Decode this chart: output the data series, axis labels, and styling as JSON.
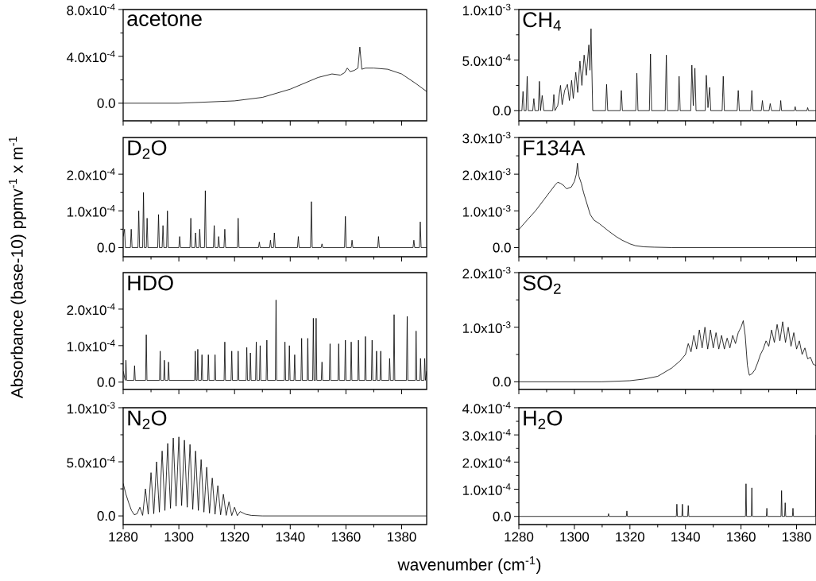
{
  "chart_data": [
    {
      "type": "line",
      "title": "acetone",
      "ylabel": "Absorbance (base-10) ppmv$^{-1}$ x m$^{-1}$",
      "color": "#000000",
      "tick_labels": "y",
      "xlim": [
        1280,
        1389
      ],
      "xticks": [
        1280,
        1300,
        1320,
        1340,
        1360,
        1380
      ],
      "ylim": [
        -0.00015,
        0.0008
      ],
      "yticks": [
        {
          "value": 0,
          "label": "0.0"
        },
        {
          "value": 0.0004,
          "label": "4.0x10$^{-4}$"
        },
        {
          "value": 0.0008,
          "label": "8.0x10$^{-4}$"
        }
      ],
      "x": [
        1280,
        1300,
        1320,
        1330,
        1340,
        1345,
        1350,
        1355,
        1358,
        1359.5,
        1360.5,
        1361.5,
        1363,
        1364.3,
        1365,
        1365.7,
        1367,
        1370,
        1375,
        1380,
        1385,
        1389
      ],
      "values": [
        0,
        0,
        2e-05,
        5e-05,
        0.00012,
        0.00017,
        0.00022,
        0.00025,
        0.00024,
        0.00026,
        0.0003,
        0.00027,
        0.00028,
        0.0003,
        0.00048,
        0.00029,
        0.0003,
        0.0003,
        0.00029,
        0.00025,
        0.00017,
        0.0001
      ]
    },
    {
      "type": "line",
      "title": "CH$_{4}$",
      "color": "#000000",
      "tick_labels": "y",
      "xlim": [
        1280,
        1387
      ],
      "xticks": [
        1280,
        1300,
        1320,
        1340,
        1360,
        1380
      ],
      "ylim": [
        -0.0001,
        0.001
      ],
      "yticks": [
        {
          "value": 0,
          "label": "0.0"
        },
        {
          "value": 0.0005,
          "label": "5.0x10$^{-4}$"
        },
        {
          "value": 0.001,
          "label": "1.0x10$^{-3}$"
        }
      ],
      "x": [
        1280,
        1281.1,
        1281.5,
        1281.9,
        1282.6,
        1283,
        1283.4,
        1285,
        1285.4,
        1285.8,
        1287,
        1287.4,
        1287.8,
        1288.4,
        1289,
        1292.2,
        1292.6,
        1293,
        1294,
        1295,
        1295.6,
        1296.5,
        1297.5,
        1298.2,
        1299,
        1299.6,
        1300.5,
        1301.2,
        1302,
        1302.7,
        1303.5,
        1304.3,
        1305.2,
        1305.6,
        1306,
        1306.6,
        1311.2,
        1311.6,
        1312,
        1316.5,
        1316.9,
        1317.3,
        1322.1,
        1322.5,
        1322.9,
        1327,
        1327.4,
        1327.8,
        1332.7,
        1333.1,
        1333.5,
        1337.3,
        1337.7,
        1338.1,
        1341.9,
        1342.3,
        1342.8,
        1343.4,
        1343.8,
        1347.1,
        1347.5,
        1348.1,
        1348.7,
        1349.1,
        1353.2,
        1353.6,
        1354,
        1358.6,
        1359,
        1359.4,
        1363.5,
        1363.9,
        1364.3,
        1367.3,
        1367.7,
        1368.1,
        1370.1,
        1370.5,
        1371,
        1374,
        1374.3,
        1374.6,
        1379.2,
        1379.5,
        1379.8,
        1383.7,
        1384,
        1384.3,
        1387
      ],
      "values": [
        0,
        0,
        0.00019,
        0,
        0,
        0.00034,
        0,
        0,
        0.00012,
        0,
        0,
        0.00029,
        0,
        0.00015,
        0,
        0,
        0.00016,
        0,
        5e-05,
        0.00025,
        6e-05,
        0.0002,
        0.00026,
        0.0001,
        0.0003,
        0.00012,
        0.00038,
        0.00018,
        0.00049,
        0.00025,
        0.00055,
        0.00035,
        0.00065,
        0.0004,
        0.00081,
        0,
        0,
        0.00026,
        0,
        0,
        0.0002,
        0,
        0,
        0.00037,
        0,
        0,
        0.00056,
        0,
        0,
        0.00055,
        0,
        0,
        0.00034,
        0,
        0,
        0.00045,
        5e-05,
        0.00042,
        0,
        0,
        0.00035,
        3e-05,
        0.00023,
        0,
        0,
        0.00034,
        0,
        0,
        0.0002,
        0,
        0,
        0.0002,
        0,
        0,
        0.0001,
        0,
        0,
        7e-05,
        0,
        0,
        0.0001,
        0,
        0,
        4e-05,
        0,
        0,
        3e-05,
        0,
        0
      ]
    },
    {
      "type": "line",
      "title": "D$_{2}$O",
      "color": "#000000",
      "tick_labels": "y",
      "xlim": [
        1280,
        1389
      ],
      "xticks": [
        1280,
        1300,
        1320,
        1340,
        1360,
        1380
      ],
      "ylim": [
        -2.5e-05,
        0.0003
      ],
      "yticks": [
        {
          "value": 0,
          "label": "0.0"
        },
        {
          "value": 0.0001,
          "label": "1.0x10$^{-4}$"
        },
        {
          "value": 0.0002,
          "label": "2.0x10$^{-4}$"
        }
      ],
      "x": [
        1280,
        1280.5,
        1280.8,
        1282.6,
        1282.9,
        1283.2,
        1285.3,
        1285.6,
        1285.9,
        1287,
        1287.3,
        1287.6,
        1288.3,
        1288.6,
        1288.9,
        1292.4,
        1292.7,
        1293,
        1294,
        1294.3,
        1294.6,
        1295.6,
        1295.9,
        1296.2,
        1300,
        1300.3,
        1300.6,
        1304,
        1304.3,
        1304.6,
        1305.7,
        1306,
        1306.3,
        1307.2,
        1307.5,
        1307.8,
        1309.2,
        1309.5,
        1309.8,
        1312.4,
        1312.7,
        1313,
        1314,
        1314.3,
        1314.6,
        1316.2,
        1316.5,
        1316.8,
        1321,
        1321.3,
        1321.6,
        1328.6,
        1328.9,
        1329.2,
        1332.6,
        1332.9,
        1333.2,
        1334,
        1334.3,
        1334.6,
        1342.6,
        1342.9,
        1343.2,
        1347.3,
        1347.6,
        1347.9,
        1351.1,
        1351.4,
        1351.7,
        1359.5,
        1359.8,
        1360.1,
        1361.9,
        1362.2,
        1362.5,
        1371.4,
        1371.7,
        1372,
        1384.1,
        1384.4,
        1384.7,
        1386.4,
        1386.7,
        1387,
        1389
      ],
      "values": [
        3e-05,
        5e-05,
        0,
        0,
        5e-05,
        0,
        0,
        0.0001,
        0,
        0,
        0.00015,
        0,
        0,
        8e-05,
        0,
        0,
        9e-05,
        0,
        0,
        6e-05,
        0,
        0,
        0.0001,
        0,
        0,
        3e-05,
        0,
        0,
        8e-05,
        0,
        0,
        4e-05,
        0,
        0,
        5e-05,
        0,
        0,
        0.000155,
        0,
        0,
        6e-05,
        0,
        0,
        3e-05,
        0,
        0,
        5e-05,
        0,
        0,
        8e-05,
        0,
        0,
        1.5e-05,
        0,
        0,
        2e-05,
        0,
        0,
        4e-05,
        0,
        0,
        3e-05,
        0,
        0,
        0.000125,
        0,
        0,
        1e-05,
        0,
        0,
        8.5e-05,
        0,
        0,
        2e-05,
        0,
        0,
        3e-05,
        0,
        0,
        2e-05,
        0,
        0,
        7e-05,
        0,
        0
      ]
    },
    {
      "type": "line",
      "title": "F134A",
      "color": "#000000",
      "tick_labels": "y",
      "xlim": [
        1280,
        1387
      ],
      "xticks": [
        1280,
        1300,
        1320,
        1340,
        1360,
        1380
      ],
      "ylim": [
        -0.00025,
        0.003
      ],
      "yticks": [
        {
          "value": 0,
          "label": "0.0"
        },
        {
          "value": 0.001,
          "label": "1.0x10$^{-3}$"
        },
        {
          "value": 0.002,
          "label": "2.0x10$^{-3}$"
        },
        {
          "value": 0.003,
          "label": "3.0x10$^{-3}$"
        }
      ],
      "x": [
        1280,
        1283,
        1286,
        1289,
        1291,
        1293,
        1294,
        1295,
        1296,
        1297.2,
        1298.9,
        1300,
        1300.7,
        1301.1,
        1301.6,
        1302.5,
        1303.3,
        1304.5,
        1305.7,
        1307,
        1309,
        1312.3,
        1315,
        1317.2,
        1320,
        1322,
        1325,
        1328.7,
        1335,
        1345,
        1360,
        1370,
        1380,
        1387
      ],
      "values": [
        0.00049,
        0.00075,
        0.001,
        0.0013,
        0.0015,
        0.0017,
        0.00178,
        0.00175,
        0.0017,
        0.0016,
        0.00165,
        0.0018,
        0.002,
        0.0023,
        0.00195,
        0.00175,
        0.0015,
        0.0012,
        0.0009,
        0.00075,
        0.00065,
        0.00045,
        0.0003,
        0.0002,
        0.0001,
        5e-05,
        2e-05,
        1e-05,
        0,
        0,
        0,
        0,
        0,
        0
      ]
    },
    {
      "type": "line",
      "title": "HDO",
      "color": "#000000",
      "tick_labels": "y",
      "xlim": [
        1280,
        1389
      ],
      "xticks": [
        1280,
        1300,
        1320,
        1340,
        1360,
        1380
      ],
      "ylim": [
        -2e-05,
        0.0003
      ],
      "yticks": [
        {
          "value": 0,
          "label": "0.0"
        },
        {
          "value": 0.0001,
          "label": "1.0x10$^{-4}$"
        },
        {
          "value": 0.0002,
          "label": "2.0x10$^{-4}$"
        }
      ],
      "x": [
        1280,
        1280.75,
        1281,
        1281.25,
        1283.85,
        1284.1,
        1284.35,
        1288.05,
        1288.3,
        1288.55,
        1293.05,
        1293.3,
        1293.55,
        1294.55,
        1294.8,
        1295.05,
        1296.05,
        1296.3,
        1296.55,
        1305.65,
        1305.9,
        1306.15,
        1306.55,
        1306.8,
        1307.05,
        1308.05,
        1308.3,
        1308.55,
        1310.35,
        1310.6,
        1310.85,
        1312.75,
        1313,
        1313.25,
        1316.25,
        1316.5,
        1316.75,
        1318.75,
        1319,
        1319.25,
        1321.05,
        1321.3,
        1321.55,
        1324.15,
        1324.4,
        1324.65,
        1325.45,
        1325.7,
        1325.95,
        1327.55,
        1327.8,
        1328.05,
        1328.95,
        1329.2,
        1329.45,
        1331.35,
        1331.6,
        1331.85,
        1334.65,
        1334.9,
        1335.15,
        1337.85,
        1338.1,
        1338.35,
        1339.45,
        1339.7,
        1339.95,
        1341.35,
        1341.6,
        1341.85,
        1343.85,
        1344.1,
        1344.35,
        1346.05,
        1346.3,
        1346.55,
        1348.05,
        1348.3,
        1348.55,
        1349.05,
        1349.3,
        1349.55,
        1351.15,
        1351.4,
        1351.65,
        1354.05,
        1354.3,
        1354.55,
        1357.15,
        1357.4,
        1357.65,
        1359.55,
        1359.8,
        1360.05,
        1361.65,
        1361.9,
        1362.15,
        1364.25,
        1364.5,
        1364.75,
        1366.75,
        1367,
        1367.25,
        1369.15,
        1369.4,
        1369.65,
        1370.75,
        1371,
        1371.25,
        1372.25,
        1372.5,
        1372.75,
        1375.45,
        1375.7,
        1375.95,
        1377.05,
        1377.3,
        1377.55,
        1381.75,
        1382,
        1382.25,
        1384.95,
        1385.2,
        1385.45,
        1386.55,
        1386.8,
        1387.05,
        1388.05,
        1388.3,
        1388.55,
        1389
      ],
      "values": [
        3e-05,
        5e-06,
        6e-05,
        5e-06,
        5e-06,
        4.5e-05,
        5e-06,
        5e-06,
        0.00013,
        5e-06,
        5e-06,
        8.5e-05,
        5e-06,
        5e-06,
        6e-05,
        5e-06,
        5e-06,
        5.5e-05,
        5e-06,
        5e-06,
        8.5e-05,
        5e-06,
        5e-06,
        9e-05,
        5e-06,
        5e-06,
        7.5e-05,
        5e-06,
        5e-06,
        7.5e-05,
        5e-06,
        5e-06,
        7.5e-05,
        5e-06,
        5e-06,
        0.00011,
        5e-06,
        5e-06,
        8.5e-05,
        5e-06,
        5e-06,
        8.5e-05,
        5e-06,
        5e-06,
        9.5e-05,
        5e-06,
        5e-06,
        8e-05,
        5e-06,
        5e-06,
        0.00011,
        5e-06,
        5e-06,
        0.0001,
        5e-06,
        5e-06,
        0.000115,
        5e-06,
        5e-06,
        0.000225,
        5e-06,
        5e-06,
        0.00011,
        5e-06,
        5e-06,
        0.0001,
        5e-06,
        5e-06,
        7.5e-05,
        5e-06,
        5e-06,
        0.00012,
        5e-06,
        5e-06,
        0.00012,
        5e-06,
        5e-06,
        0.000175,
        5e-06,
        5e-06,
        0.000175,
        5e-06,
        5e-06,
        5.5e-05,
        5e-06,
        5e-06,
        0.000105,
        5e-06,
        5e-06,
        0.000105,
        5e-06,
        5e-06,
        0.000115,
        5e-06,
        5e-06,
        0.00011,
        5e-06,
        5e-06,
        0.000115,
        5e-06,
        5e-06,
        0.000125,
        5e-06,
        5e-06,
        0.000115,
        5e-06,
        5e-06,
        8.5e-05,
        5e-06,
        5e-06,
        8.5e-05,
        5e-06,
        5e-06,
        6.5e-05,
        5e-06,
        5e-06,
        0.000185,
        5e-06,
        5e-06,
        0.00018,
        5e-06,
        5e-06,
        0.00014,
        5e-06,
        5e-06,
        6.5e-05,
        5e-06,
        5e-06,
        6.5e-05,
        5e-06,
        3e-05
      ]
    },
    {
      "type": "line",
      "title": "SO$_{2}$",
      "color": "#000000",
      "tick_labels": "y",
      "xlim": [
        1280,
        1387
      ],
      "xticks": [
        1280,
        1300,
        1320,
        1340,
        1360,
        1380
      ],
      "ylim": [
        -0.00014,
        0.002
      ],
      "yticks": [
        {
          "value": 0,
          "label": "0.0"
        },
        {
          "value": 0.001,
          "label": "1.0x10$^{-3}$"
        },
        {
          "value": 0.002,
          "label": "2.0x10$^{-3}$"
        }
      ],
      "x": [
        1280,
        1300,
        1310,
        1320,
        1325,
        1330,
        1335,
        1338,
        1340,
        1341,
        1342,
        1343,
        1344,
        1345,
        1346,
        1347,
        1348,
        1349,
        1350,
        1351,
        1352,
        1353,
        1354,
        1355,
        1356,
        1357,
        1358,
        1359,
        1360,
        1360.8,
        1361.5,
        1362.3,
        1363,
        1364,
        1365,
        1366,
        1367,
        1368,
        1369,
        1370,
        1371,
        1372,
        1373,
        1374,
        1375,
        1376,
        1377,
        1378,
        1379,
        1380,
        1381,
        1382,
        1383,
        1384,
        1385,
        1386,
        1387
      ],
      "values": [
        0,
        0,
        0,
        2e-05,
        5e-05,
        0.0001,
        0.00025,
        0.00038,
        0.0005,
        0.0007,
        0.00055,
        0.00085,
        0.0006,
        0.00095,
        0.00062,
        0.001,
        0.0006,
        0.00095,
        0.00062,
        0.0009,
        0.0006,
        0.00085,
        0.0006,
        0.0008,
        0.00062,
        0.00085,
        0.0007,
        0.0009,
        0.001,
        0.00112,
        0.00085,
        0.0003,
        0.00012,
        0.00015,
        0.00022,
        0.00035,
        0.0005,
        0.0006,
        0.00075,
        0.00065,
        0.00095,
        0.00072,
        0.00105,
        0.00075,
        0.0011,
        0.00072,
        0.001,
        0.00065,
        0.0009,
        0.0006,
        0.00075,
        0.0005,
        0.00062,
        0.00042,
        0.00045,
        0.00032,
        0.0003
      ]
    },
    {
      "type": "line",
      "title": "N$_{2}$O",
      "color": "#000000",
      "xlim": [
        1280,
        1389
      ],
      "xticks": [
        1280,
        1300,
        1320,
        1340,
        1360,
        1380
      ],
      "ylim": [
        -8e-05,
        0.001
      ],
      "xlabel": "wavenumber (cm$^{-1}$)",
      "yticks": [
        {
          "value": 0,
          "label": "0.0"
        },
        {
          "value": 0.0005,
          "label": "5.0x10$^{-4}$"
        },
        {
          "value": 0.001,
          "label": "1.0x10$^{-3}$"
        }
      ],
      "x": [
        1280,
        1281,
        1282,
        1283,
        1284,
        1285,
        1286,
        1287,
        1288,
        1289,
        1290,
        1291,
        1292,
        1293,
        1294,
        1295,
        1296,
        1297,
        1298,
        1299,
        1300,
        1301,
        1302,
        1303,
        1304,
        1305,
        1306,
        1307,
        1308,
        1309,
        1310,
        1311,
        1312,
        1313,
        1314,
        1315,
        1316,
        1317,
        1318,
        1319,
        1320,
        1321,
        1322,
        1324,
        1326,
        1330,
        1389
      ],
      "values": [
        0.0003,
        0.0002,
        0.00012,
        5e-05,
        1e-05,
        2e-05,
        8e-05,
        5e-06,
        0.00025,
        1.5e-05,
        0.0004,
        2e-05,
        0.0005,
        3.5e-05,
        0.0006,
        5e-05,
        0.00067,
        7e-05,
        0.00072,
        9e-05,
        0.00073,
        9.5e-05,
        0.0007,
        8e-05,
        0.00066,
        6e-05,
        0.0006,
        5e-05,
        0.00052,
        3.5e-05,
        0.00045,
        2.5e-05,
        0.00035,
        1.5e-05,
        0.00028,
        1e-05,
        0.0002,
        5e-06,
        0.00013,
        3e-06,
        8e-05,
        2e-06,
        4e-05,
        1.5e-05,
        5e-06,
        0,
        0
      ]
    },
    {
      "type": "line",
      "title": "H$_{2}$O",
      "color": "#000000",
      "xlim": [
        1280,
        1387
      ],
      "xticks": [
        1280,
        1300,
        1320,
        1340,
        1360,
        1380
      ],
      "ylim": [
        -3e-05,
        0.0004
      ],
      "yticks": [
        {
          "value": 0,
          "label": "0.0"
        },
        {
          "value": 0.0001,
          "label": "1.0x10$^{-4}$"
        },
        {
          "value": 0.0002,
          "label": "2.0x10$^{-4}$"
        },
        {
          "value": 0.0003,
          "label": "3.0x10$^{-4}$"
        },
        {
          "value": 0.0004,
          "label": "4.0x10$^{-4}$"
        }
      ],
      "x": [
        1280,
        1312.1,
        1312.3,
        1312.5,
        1318.7,
        1318.9,
        1319.1,
        1336.7,
        1336.9,
        1337.1,
        1338.7,
        1338.9,
        1339.1,
        1340.8,
        1341,
        1341.2,
        1361.6,
        1361.8,
        1362,
        1363.7,
        1363.9,
        1364.1,
        1369.1,
        1369.3,
        1369.5,
        1374.4,
        1374.6,
        1374.8,
        1375.7,
        1375.9,
        1376.1,
        1378.5,
        1378.7,
        1378.9,
        1386.8,
        1387
      ],
      "values": [
        0,
        0,
        1e-05,
        0,
        0,
        2e-05,
        0,
        0,
        4.5e-05,
        0,
        0,
        4.5e-05,
        0,
        0,
        4e-05,
        0,
        0,
        0.00012,
        0,
        0,
        0.000105,
        0,
        0,
        3e-05,
        0,
        0,
        9.5e-05,
        0,
        0,
        5e-05,
        0,
        0,
        3e-05,
        0,
        0,
        0.0003
      ]
    }
  ]
}
